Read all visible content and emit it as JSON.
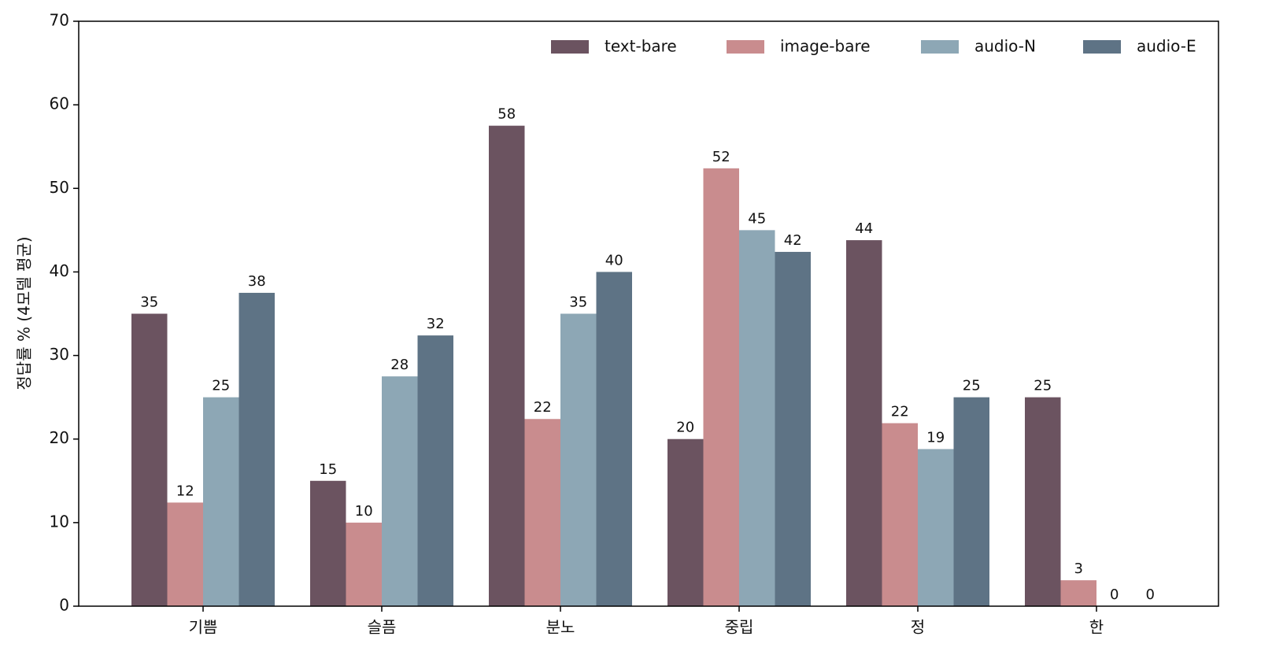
{
  "chart_data": {
    "type": "bar",
    "y_label": "정답률 % (4모델 평균)",
    "categories": [
      "기쁨",
      "슬픔",
      "분노",
      "중립",
      "정",
      "한"
    ],
    "series": [
      {
        "name": "text-bare",
        "color": "#6b5360",
        "values": [
          35,
          15,
          57.5,
          20,
          43.8,
          25
        ],
        "value_labels": [
          "35",
          "15",
          "58",
          "20",
          "44",
          "25"
        ]
      },
      {
        "name": "image-bare",
        "color": "#c98c8e",
        "values": [
          12.4,
          10,
          22.4,
          52.4,
          21.9,
          3.1
        ],
        "value_labels": [
          "12",
          "10",
          "22",
          "52",
          "22",
          "3"
        ]
      },
      {
        "name": "audio-N",
        "color": "#8da7b5",
        "values": [
          25,
          27.5,
          35,
          45,
          18.8,
          0
        ],
        "value_labels": [
          "25",
          "28",
          "35",
          "45",
          "19",
          "0"
        ]
      },
      {
        "name": "audio-E",
        "color": "#5e7385",
        "values": [
          37.5,
          32.4,
          40,
          42.4,
          25,
          0
        ],
        "value_labels": [
          "38",
          "32",
          "40",
          "42",
          "25",
          "0"
        ]
      }
    ],
    "ylim": [
      0,
      70
    ],
    "yticks": [
      0,
      10,
      20,
      30,
      40,
      50,
      60,
      70
    ],
    "legend": "upper right",
    "grid": false
  }
}
